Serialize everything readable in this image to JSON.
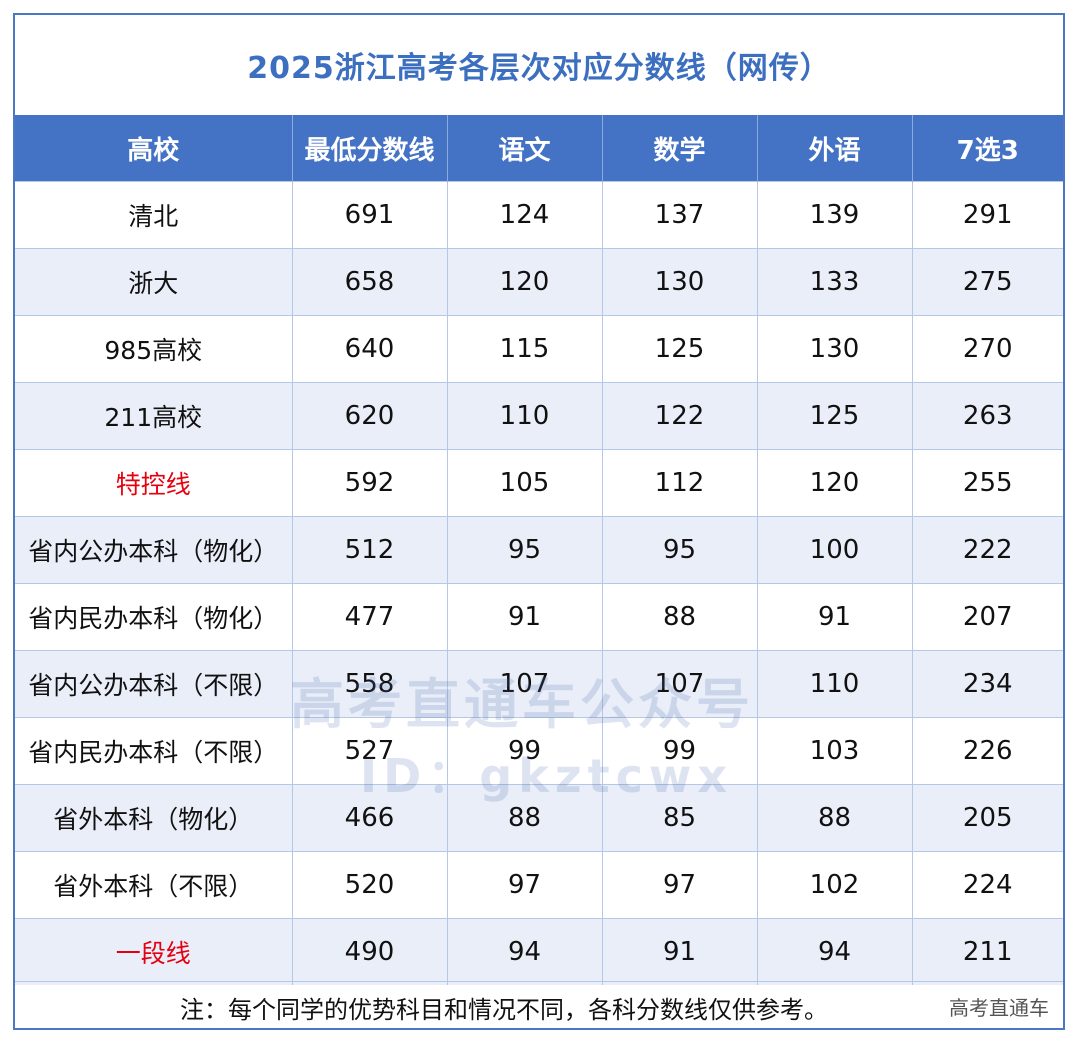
{
  "title": "2025浙江高考各层次对应分数线（网传）",
  "table": {
    "headers": [
      "高校",
      "最低分数线",
      "语文",
      "数学",
      "外语",
      "7选3"
    ],
    "rows": [
      [
        "清北",
        "691",
        "124",
        "137",
        "139",
        "291"
      ],
      [
        "浙大",
        "658",
        "120",
        "130",
        "133",
        "275"
      ],
      [
        "985高校",
        "640",
        "115",
        "125",
        "130",
        "270"
      ],
      [
        "211高校",
        "620",
        "110",
        "122",
        "125",
        "263"
      ],
      [
        "特控线",
        "592",
        "105",
        "112",
        "120",
        "255"
      ],
      [
        "省内公办本科（物化）",
        "512",
        "95",
        "95",
        "100",
        "222"
      ],
      [
        "省内民办本科（物化）",
        "477",
        "91",
        "88",
        "91",
        "207"
      ],
      [
        "省内公办本科（不限）",
        "558",
        "107",
        "107",
        "110",
        "234"
      ],
      [
        "省内民办本科（不限）",
        "527",
        "99",
        "99",
        "103",
        "226"
      ],
      [
        "省外本科（物化）",
        "466",
        "88",
        "85",
        "88",
        "205"
      ],
      [
        "省外本科（不限）",
        "520",
        "97",
        "97",
        "102",
        "224"
      ],
      [
        "一段线",
        "490",
        "94",
        "91",
        "94",
        "211"
      ]
    ]
  },
  "note": "注：每个同学的优势科目和情况不同，各科分数线仅供参考。",
  "brand": "高考直通车",
  "watermark": {
    "name": "高考直通车公众号",
    "id": "ID：gkztcwx"
  },
  "colors": {
    "header_bg": "#4472c4",
    "title": "#3c6fc0",
    "highlight": "#e5000f",
    "alt_row": "#e9eef8"
  }
}
